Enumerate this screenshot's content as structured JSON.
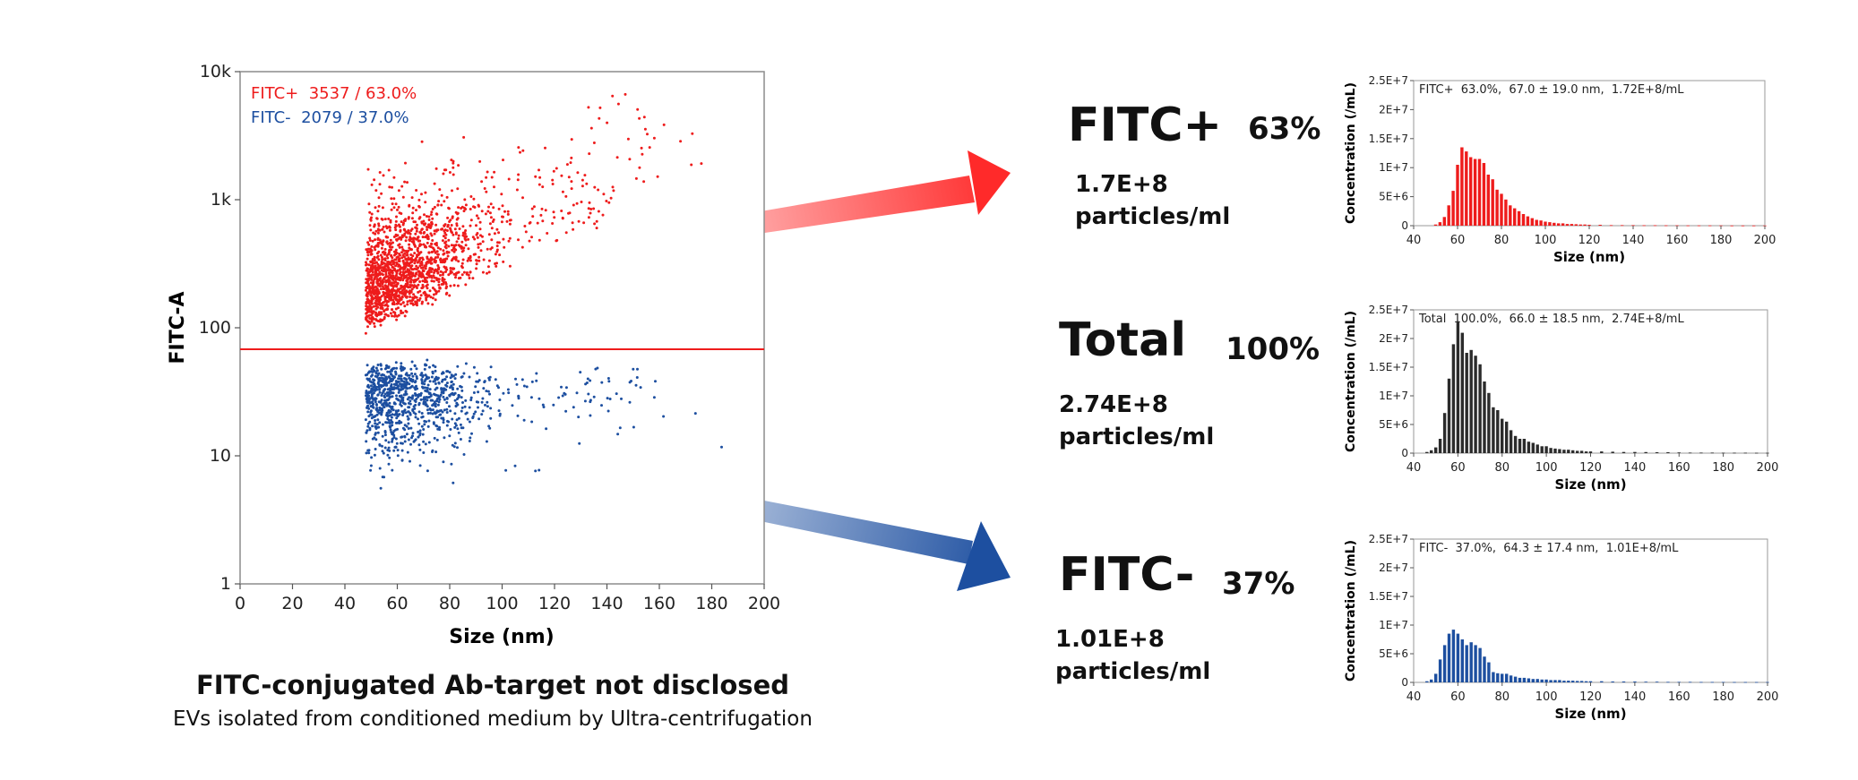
{
  "scatter": {
    "ylabel": "FITC-A",
    "xlabel": "Size (nm)",
    "x_ticks": [
      "0",
      "20",
      "40",
      "60",
      "80",
      "100",
      "120",
      "140",
      "160",
      "180",
      "200"
    ],
    "y_ticks": [
      "10k",
      "1k",
      "100",
      "10",
      "1"
    ],
    "legend_pos": "FITC+  3537 / 63.0%",
    "legend_neg": "FITC-  2079 / 37.0%",
    "gate_value": 68,
    "pos_color": "#ee1c1c",
    "neg_color": "#1d4fa0"
  },
  "caption": {
    "title": "FITC-conjugated Ab-target not disclosed",
    "subtitle": "EVs isolated from conditioned medium by Ultra-centrifugation"
  },
  "groups": [
    {
      "name": "FITC+",
      "pct": "63%",
      "conc_value": "1.7E+8",
      "conc_unit": "particles/ml"
    },
    {
      "name": "Total",
      "pct": "100%",
      "conc_value": "2.74E+8",
      "conc_unit": "particles/ml"
    },
    {
      "name": "FITC-",
      "pct": "37%",
      "conc_value": "1.01E+8",
      "conc_unit": "particles/ml"
    }
  ],
  "chart_data": [
    {
      "type": "scatter",
      "title": "",
      "xlabel": "Size (nm)",
      "ylabel": "FITC-A",
      "xlim": [
        0,
        200
      ],
      "ylim": [
        1,
        10000
      ],
      "yscale": "log",
      "series": [
        {
          "name": "FITC+",
          "count": 3537,
          "percent": "63.0%",
          "color": "#ee1c1c"
        },
        {
          "name": "FITC-",
          "count": 2079,
          "percent": "37.0%",
          "color": "#1d4fa0"
        }
      ],
      "gate_threshold": 68
    },
    {
      "type": "bar",
      "title": "FITC+  63.0%,  67.0 ± 19.0 nm,  1.72E+8/mL",
      "xlabel": "Size (nm)",
      "ylabel": "Concentration (/mL)",
      "xlim": [
        40,
        200
      ],
      "ylim": [
        0,
        25000000
      ],
      "x_ticks": [
        "40",
        "60",
        "80",
        "100",
        "120",
        "140",
        "160",
        "180",
        "200"
      ],
      "y_ticks": [
        "0",
        "5E+6",
        "1E+7",
        "1.5E+7",
        "2E+7",
        "2.5E+7"
      ],
      "color": "#ee1c1c",
      "x": [
        50,
        52,
        54,
        56,
        58,
        60,
        62,
        64,
        66,
        68,
        70,
        72,
        74,
        76,
        78,
        80,
        82,
        84,
        86,
        88,
        90,
        92,
        94,
        96,
        98,
        100,
        102,
        104,
        106,
        108,
        110,
        112,
        114,
        116,
        118,
        120,
        125,
        130,
        135,
        140,
        145,
        150,
        155,
        160,
        165,
        170,
        175,
        180,
        185,
        190,
        195,
        200
      ],
      "values": [
        200000,
        600000,
        1500000,
        3500000,
        6000000,
        10500000,
        13500000,
        12800000,
        11800000,
        11500000,
        11500000,
        10800000,
        8800000,
        8000000,
        6200000,
        5500000,
        4500000,
        3500000,
        3000000,
        2500000,
        2000000,
        1600000,
        1300000,
        1000000,
        900000,
        700000,
        600000,
        500000,
        400000,
        400000,
        300000,
        300000,
        250000,
        200000,
        200000,
        150000,
        150000,
        100000,
        100000,
        100000,
        80000,
        80000,
        60000,
        60000,
        50000,
        50000,
        40000,
        40000,
        30000,
        30000,
        30000,
        30000
      ]
    },
    {
      "type": "bar",
      "title": "Total  100.0%,  66.0 ± 18.5 nm,  2.74E+8/mL",
      "xlabel": "Size (nm)",
      "ylabel": "Concentration (/mL)",
      "xlim": [
        40,
        200
      ],
      "ylim": [
        0,
        25000000
      ],
      "x_ticks": [
        "40",
        "60",
        "80",
        "100",
        "120",
        "140",
        "160",
        "180",
        "200"
      ],
      "y_ticks": [
        "0",
        "5E+6",
        "1E+7",
        "1.5E+7",
        "2E+7",
        "2.5E+7"
      ],
      "color": "#2b2b2b",
      "x": [
        46,
        48,
        50,
        52,
        54,
        56,
        58,
        60,
        62,
        64,
        66,
        68,
        70,
        72,
        74,
        76,
        78,
        80,
        82,
        84,
        86,
        88,
        90,
        92,
        94,
        96,
        98,
        100,
        102,
        104,
        106,
        108,
        110,
        112,
        114,
        116,
        118,
        120,
        125,
        130,
        135,
        140,
        145,
        150,
        155,
        160,
        165,
        170,
        175,
        180,
        185,
        190,
        195,
        200
      ],
      "values": [
        200000,
        500000,
        1000000,
        2500000,
        7000000,
        13000000,
        19000000,
        23000000,
        21000000,
        17500000,
        18000000,
        17000000,
        15500000,
        12500000,
        10500000,
        8000000,
        7500000,
        6000000,
        5500000,
        4000000,
        3000000,
        2500000,
        2500000,
        2000000,
        1800000,
        1500000,
        1200000,
        1200000,
        900000,
        800000,
        700000,
        600000,
        600000,
        500000,
        400000,
        400000,
        300000,
        300000,
        300000,
        250000,
        200000,
        200000,
        180000,
        150000,
        150000,
        120000,
        100000,
        100000,
        100000,
        80000,
        80000,
        80000,
        60000,
        60000
      ]
    },
    {
      "type": "bar",
      "title": "FITC-  37.0%,  64.3 ± 17.4 nm,  1.01E+8/mL",
      "xlabel": "Size (nm)",
      "ylabel": "Concentration (/mL)",
      "xlim": [
        40,
        200
      ],
      "ylim": [
        0,
        25000000
      ],
      "x_ticks": [
        "40",
        "60",
        "80",
        "100",
        "120",
        "140",
        "160",
        "180",
        "200"
      ],
      "y_ticks": [
        "0",
        "5E+6",
        "1E+7",
        "1.5E+7",
        "2E+7",
        "2.5E+7"
      ],
      "color": "#1d4fa0",
      "x": [
        46,
        48,
        50,
        52,
        54,
        56,
        58,
        60,
        62,
        64,
        66,
        68,
        70,
        72,
        74,
        76,
        78,
        80,
        82,
        84,
        86,
        88,
        90,
        92,
        94,
        96,
        98,
        100,
        102,
        104,
        106,
        108,
        110,
        112,
        114,
        116,
        118,
        120,
        125,
        130,
        135,
        140,
        145,
        150,
        155,
        160,
        165,
        170,
        175,
        180,
        185,
        190,
        195,
        200
      ],
      "values": [
        200000,
        500000,
        1500000,
        4000000,
        6500000,
        8500000,
        9200000,
        8500000,
        7500000,
        6500000,
        7000000,
        6500000,
        6000000,
        4500000,
        3500000,
        1800000,
        1600000,
        1500000,
        1500000,
        1200000,
        1000000,
        800000,
        800000,
        700000,
        600000,
        600000,
        500000,
        500000,
        400000,
        400000,
        400000,
        300000,
        300000,
        300000,
        250000,
        250000,
        200000,
        200000,
        200000,
        150000,
        150000,
        150000,
        120000,
        120000,
        100000,
        100000,
        100000,
        80000,
        80000,
        80000,
        60000,
        60000,
        60000,
        60000
      ]
    }
  ]
}
